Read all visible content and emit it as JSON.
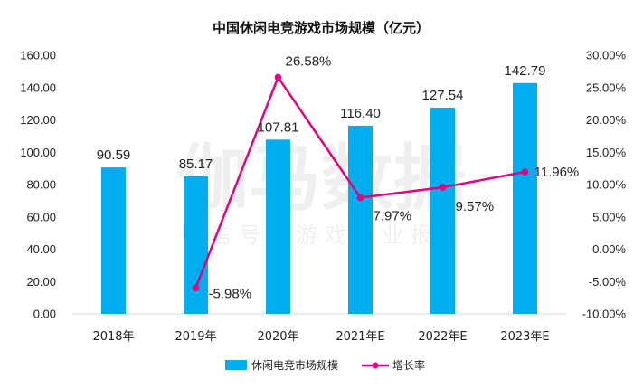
{
  "watermark": {
    "main": "伽马数据",
    "sub": "微 信 号 ： 游 戏 产 业 报 告"
  },
  "chart_data": {
    "type": "bar",
    "title": "中国休闲电竞游戏市场规模（亿元）",
    "categories": [
      "2018年",
      "2019年",
      "2020年",
      "2021年E",
      "2022年E",
      "2023年E"
    ],
    "series": [
      {
        "name": "休闲电竞市场规模",
        "type": "bar",
        "axis": "left",
        "color": "#00AEEF",
        "values": [
          90.59,
          85.17,
          107.81,
          116.4,
          127.54,
          142.79
        ],
        "labels": [
          "90.59",
          "85.17",
          "107.81",
          "116.40",
          "127.54",
          "142.79"
        ]
      },
      {
        "name": "增长率",
        "type": "line",
        "axis": "right",
        "color": "#E6007E",
        "values": [
          null,
          -5.98,
          26.58,
          7.97,
          9.57,
          11.96
        ],
        "labels": [
          "",
          "-5.98%",
          "26.58%",
          "7.97%",
          "9.57%",
          "11.96%"
        ]
      }
    ],
    "y_left": {
      "min": 0,
      "max": 160,
      "step": 20,
      "ticks": [
        "0.00",
        "20.00",
        "40.00",
        "60.00",
        "80.00",
        "100.00",
        "120.00",
        "140.00",
        "160.00"
      ]
    },
    "y_right": {
      "min": -10,
      "max": 30,
      "step": 5,
      "ticks": [
        "-10.00%",
        "-5.00%",
        "0.00%",
        "5.00%",
        "10.00%",
        "15.00%",
        "20.00%",
        "25.00%",
        "30.00%"
      ]
    },
    "grid": false,
    "legend": "bottom"
  }
}
